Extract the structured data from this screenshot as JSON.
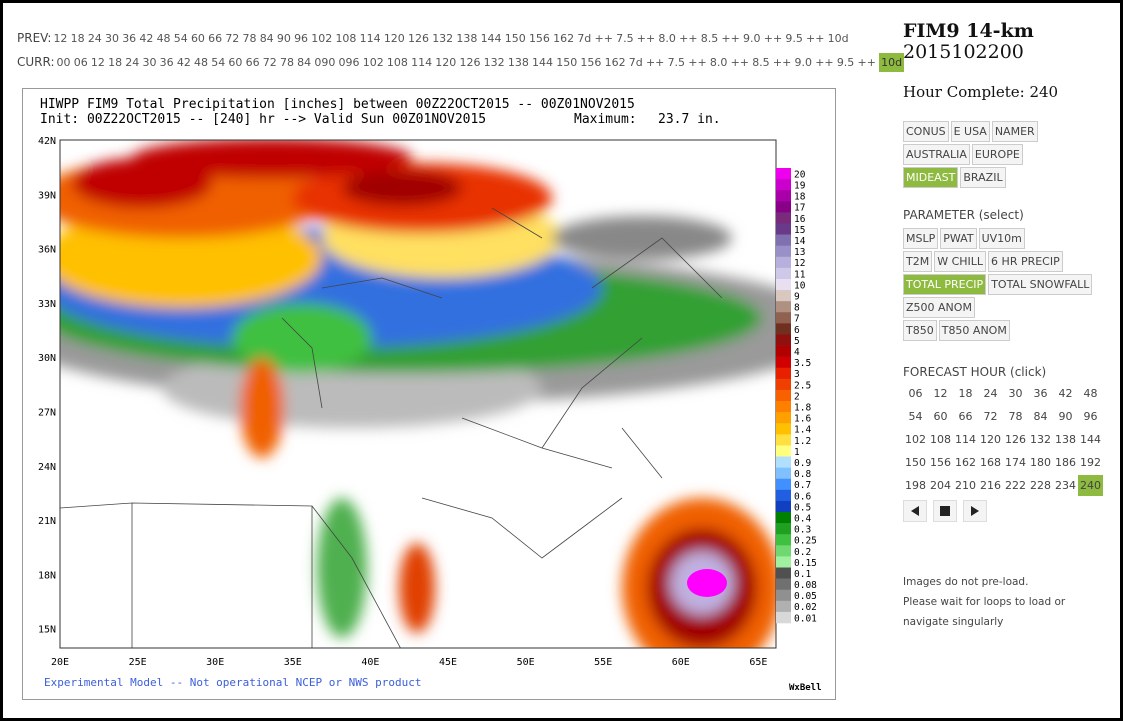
{
  "prev": {
    "label": "PREV:",
    "items": [
      "12",
      "18",
      "24",
      "30",
      "36",
      "42",
      "48",
      "54",
      "60",
      "66",
      "72",
      "78",
      "84",
      "90",
      "96",
      "102",
      "108",
      "114",
      "120",
      "126",
      "132",
      "138",
      "144",
      "150",
      "156",
      "162",
      "7d",
      "++",
      "7.5",
      "++",
      "8.0",
      "++",
      "8.5",
      "++",
      "9.0",
      "++",
      "9.5",
      "++",
      "10d"
    ]
  },
  "curr": {
    "label": "CURR:",
    "items": [
      "00",
      "06",
      "12",
      "18",
      "24",
      "30",
      "36",
      "42",
      "48",
      "54",
      "60",
      "66",
      "72",
      "78",
      "84",
      "090",
      "096",
      "102",
      "108",
      "114",
      "120",
      "126",
      "132",
      "138",
      "144",
      "150",
      "156",
      "162",
      "7d",
      "++",
      "7.5",
      "++",
      "8.0",
      "++",
      "8.5",
      "++",
      "9.0",
      "++",
      "9.5",
      "++",
      "10d"
    ],
    "active": 40
  },
  "map": {
    "title": "HIWPP FIM9 Total Precipitation [inches] between 00Z22OCT2015 -- 00Z01NOV2015",
    "init": "Init: 00Z22OCT2015 -- [240] hr --> Valid Sun 00Z01NOV2015",
    "maximum_label": "Maximum:",
    "maximum": "23.7 in.",
    "lat_labels": [
      "42N",
      "39N",
      "36N",
      "33N",
      "30N",
      "27N",
      "24N",
      "21N",
      "18N",
      "15N"
    ],
    "lon_labels": [
      "20E",
      "25E",
      "30E",
      "35E",
      "40E",
      "45E",
      "50E",
      "55E",
      "60E",
      "65E"
    ],
    "colorbar": [
      "20",
      "19",
      "18",
      "17",
      "16",
      "15",
      "14",
      "13",
      "12",
      "11",
      "10",
      "9",
      "8",
      "7",
      "6",
      "5",
      "4",
      "3.5",
      "3",
      "2.5",
      "2",
      "1.8",
      "1.6",
      "1.4",
      "1.2",
      "1",
      "0.9",
      "0.8",
      "0.7",
      "0.6",
      "0.5",
      "0.4",
      "0.3",
      "0.25",
      "0.2",
      "0.15",
      "0.1",
      "0.08",
      "0.05",
      "0.02",
      "0.01"
    ],
    "footer": "Experimental Model -- Not operational NCEP or NWS product",
    "credit": "WxBell"
  },
  "sidebar": {
    "model": "FIM9 14-km",
    "date": "2015102200",
    "hour_complete": "Hour Complete: 240",
    "regions": {
      "rows": [
        [
          "CONUS",
          "E USA",
          "NAMER"
        ],
        [
          "AUSTRALIA",
          "EUROPE"
        ],
        [
          "MIDEAST",
          "BRAZIL"
        ]
      ],
      "active": [
        2,
        0
      ]
    },
    "parameter_heading": "PARAMETER (select)",
    "parameters": {
      "rows": [
        [
          "MSLP",
          "PWAT",
          "UV10m"
        ],
        [
          "T2M",
          "W CHILL",
          "6 HR PRECIP"
        ],
        [
          "TOTAL PRECIP",
          "TOTAL SNOWFALL"
        ],
        [
          "Z500 ANOM"
        ],
        [
          "T850",
          "T850 ANOM"
        ]
      ],
      "active": [
        2,
        0
      ]
    },
    "forecast_heading": "FORECAST HOUR (click)",
    "hours": {
      "rows": [
        [
          "06",
          "12",
          "18",
          "24",
          "30",
          "36",
          "42",
          "48"
        ],
        [
          "54",
          "60",
          "66",
          "72",
          "78",
          "84",
          "90",
          "96"
        ],
        [
          "102",
          "108",
          "114",
          "120",
          "126",
          "132",
          "138",
          "144"
        ],
        [
          "150",
          "156",
          "162",
          "168",
          "174",
          "180",
          "186",
          "192"
        ],
        [
          "198",
          "204",
          "210",
          "216",
          "222",
          "228",
          "234",
          "240"
        ]
      ],
      "active": [
        4,
        7
      ]
    },
    "notes": [
      "Images do not pre-load.",
      "Please wait for loops to load or",
      "navigate singularly"
    ]
  }
}
